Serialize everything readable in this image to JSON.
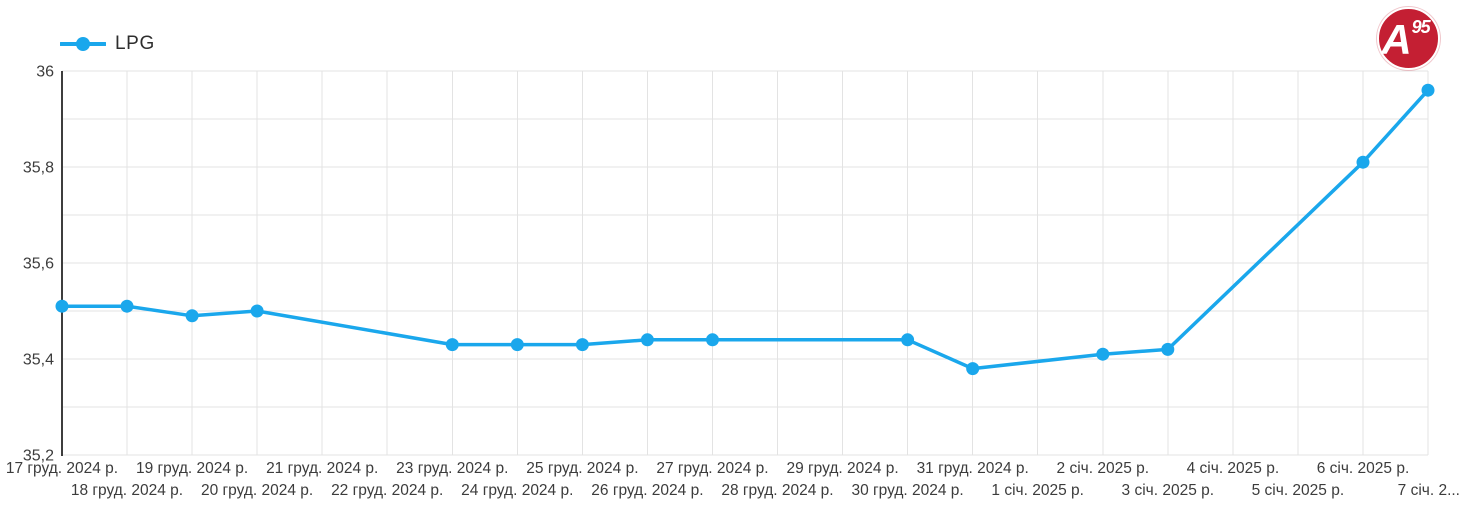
{
  "legend": {
    "label": "LPG"
  },
  "logo": {
    "letter": "A",
    "number": "95",
    "color": "#c41f33"
  },
  "chart_data": {
    "type": "line",
    "title": "",
    "xlabel": "",
    "ylabel": "",
    "categories": [
      "17 груд. 2024 р.",
      "18 груд. 2024 р.",
      "19 груд. 2024 р.",
      "20 груд. 2024 р.",
      "21 груд. 2024 р.",
      "22 груд. 2024 р.",
      "23 груд. 2024 р.",
      "24 груд. 2024 р.",
      "25 груд. 2024 р.",
      "26 груд. 2024 р.",
      "27 груд. 2024 р.",
      "28 груд. 2024 р.",
      "29 груд. 2024 р.",
      "30 груд. 2024 р.",
      "31 груд. 2024 р.",
      "1 січ. 2025 р.",
      "2 січ. 2025 р.",
      "3 січ. 2025 р.",
      "4 січ. 2025 р.",
      "5 січ. 2025 р.",
      "6 січ. 2025 р.",
      "7 січ. 2..."
    ],
    "series": [
      {
        "name": "LPG",
        "color": "#1aa7ec",
        "values": [
          35.51,
          35.51,
          35.49,
          35.5,
          null,
          null,
          35.43,
          35.43,
          35.43,
          35.44,
          35.44,
          null,
          null,
          35.44,
          35.38,
          null,
          35.41,
          35.42,
          null,
          null,
          35.81,
          35.96
        ]
      }
    ],
    "ylim": [
      35.2,
      36
    ],
    "y_grid_step": 0.1,
    "y_tick_labels": [
      {
        "value": 36,
        "label": "36"
      },
      {
        "value": 35.8,
        "label": "35,8"
      },
      {
        "value": 35.6,
        "label": "35,6"
      },
      {
        "value": 35.4,
        "label": "35,4"
      },
      {
        "value": 35.2,
        "label": "35,2"
      }
    ],
    "grid": true,
    "legend_position": "top-left",
    "colors": {
      "grid": "#e3e3e3",
      "axis": "#3d3d3d",
      "tick_text": "#3c3c3c"
    }
  }
}
